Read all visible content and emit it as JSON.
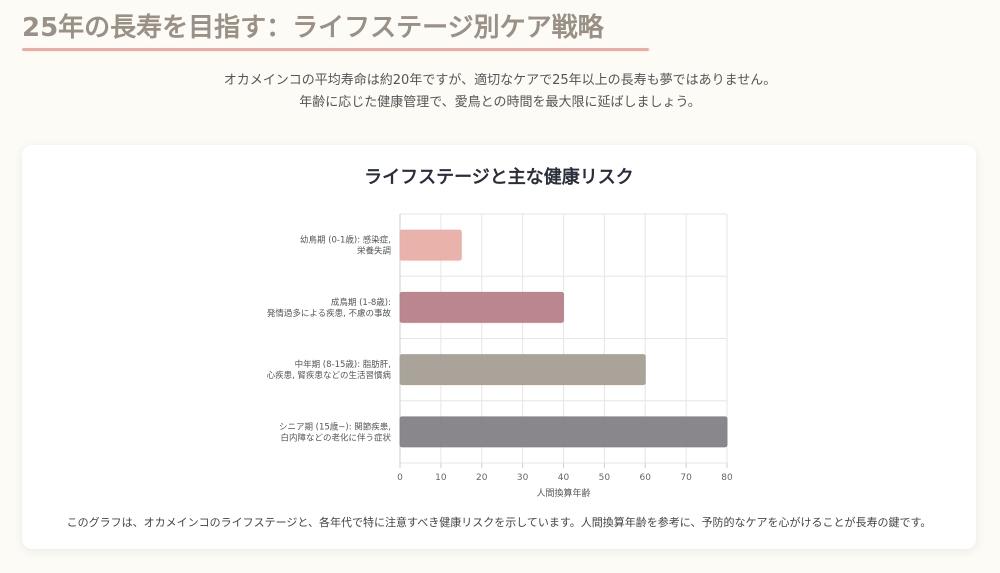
{
  "header": {
    "title": "25年の長寿を目指す：ライフステージ別ケア戦略",
    "intro_line1": "オカメインコの平均寿命は約20年ですが、適切なケアで25年以上の長寿も夢ではありません。",
    "intro_line2": "年齢に応じた健康管理で、愛鳥との時間を最大限に延ばしましょう。"
  },
  "colors": {
    "title": "#9a9186",
    "underline": "#e8aea6",
    "bar_colors": [
      "#e8aea6",
      "#b7808a",
      "#a59e93",
      "#837f86"
    ]
  },
  "chart_data": {
    "type": "bar",
    "orientation": "horizontal",
    "title": "ライフステージと主な健康リスク",
    "categories": [
      [
        "幼鳥期 (0-1歳): 感染症,",
        "栄養失調"
      ],
      [
        "成鳥期 (1-8歳):",
        "発情過多による疾患, 不慮の事故"
      ],
      [
        "中年期 (8-15歳): 脂肪肝,",
        "心疾患, 腎疾患などの生活習慣病"
      ],
      [
        "シニア期 (15歳~): 関節疾患,",
        "白内障などの老化に伴う症状"
      ]
    ],
    "values": [
      15,
      40,
      60,
      80
    ],
    "xlabel": "人間換算年齢",
    "ylabel": "",
    "xlim": [
      0,
      80
    ],
    "xticks": [
      "0",
      "10",
      "20",
      "30",
      "40",
      "50",
      "60",
      "70",
      "80"
    ],
    "grid": true,
    "legend": "none"
  },
  "caption": "このグラフは、オカメインコのライフステージと、各年代で特に注意すべき健康リスクを示しています。人間換算年齢を参考に、予防的なケアを心がけることが長寿の鍵です。"
}
